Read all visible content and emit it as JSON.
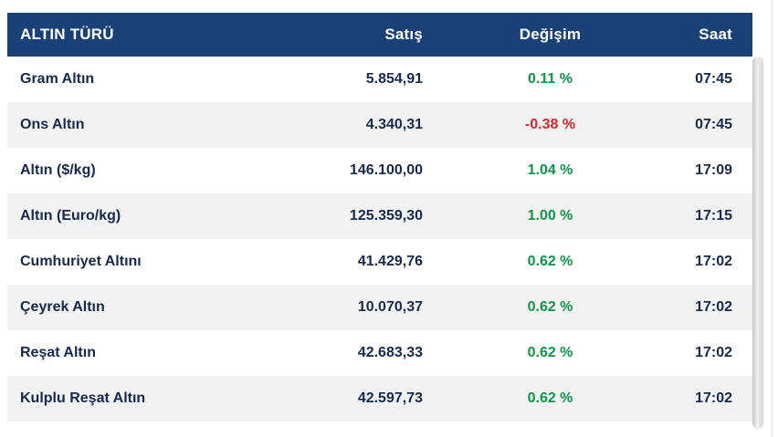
{
  "table": {
    "columns": [
      {
        "label": "ALTIN TÜRÜ",
        "align": "left"
      },
      {
        "label": "Satış",
        "align": "right"
      },
      {
        "label": "Değişim",
        "align": "center"
      },
      {
        "label": "Saat",
        "align": "right"
      }
    ],
    "rows": [
      {
        "name": "Gram Altın",
        "price": "5.854,91",
        "change": "0.11 %",
        "direction": "up",
        "time": "07:45"
      },
      {
        "name": "Ons Altın",
        "price": "4.340,31",
        "change": "-0.38 %",
        "direction": "down",
        "time": "07:45"
      },
      {
        "name": "Altın ($/kg)",
        "price": "146.100,00",
        "change": "1.04 %",
        "direction": "up",
        "time": "17:09"
      },
      {
        "name": "Altın (Euro/kg)",
        "price": "125.359,30",
        "change": "1.00 %",
        "direction": "up",
        "time": "17:15"
      },
      {
        "name": "Cumhuriyet Altını",
        "price": "41.429,76",
        "change": "0.62 %",
        "direction": "up",
        "time": "17:02"
      },
      {
        "name": "Çeyrek Altın",
        "price": "10.070,37",
        "change": "0.62 %",
        "direction": "up",
        "time": "17:02"
      },
      {
        "name": "Reşat Altın",
        "price": "42.683,33",
        "change": "0.62 %",
        "direction": "up",
        "time": "17:02"
      },
      {
        "name": "Kulplu Reşat Altın",
        "price": "42.597,73",
        "change": "0.62 %",
        "direction": "up",
        "time": "17:02"
      }
    ]
  },
  "colors": {
    "header_bg": "#1a4078",
    "row_text": "#15294e",
    "row_alt_bg": "#f2f2f2",
    "positive": "#0e9748",
    "negative": "#d8242c",
    "scrollbar": "#d8d8d8",
    "border": "#e3e3e3"
  }
}
